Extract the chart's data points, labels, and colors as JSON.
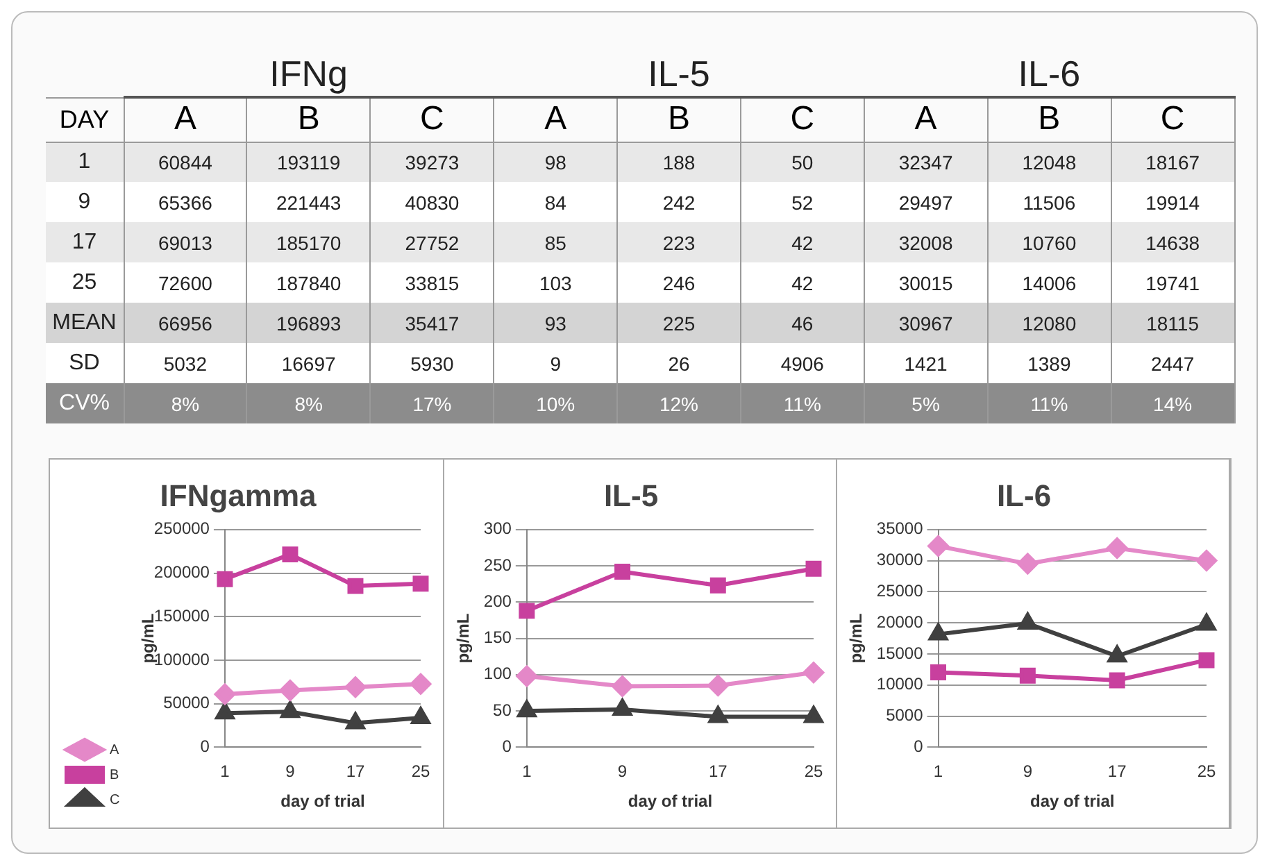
{
  "chart_data": [
    {
      "type": "heatmap",
      "annotations": [
        "DAY",
        "IFNg",
        "IL-5",
        "IL-6"
      ],
      "categories": [
        "A",
        "B",
        "C",
        "A",
        "B",
        "C",
        "A",
        "B",
        "C"
      ],
      "y_categories": [
        "1",
        "9",
        "17",
        "25",
        "MEAN",
        "SD",
        "CV%"
      ],
      "cells": [
        [
          60844,
          193119,
          39273,
          98,
          188,
          50,
          32347,
          12048,
          18167
        ],
        [
          65366,
          221443,
          40830,
          84,
          242,
          52,
          29497,
          11506,
          19914
        ],
        [
          69013,
          185170,
          27752,
          85,
          223,
          42,
          32008,
          10760,
          14638
        ],
        [
          72600,
          187840,
          33815,
          103,
          246,
          42,
          30015,
          14006,
          19741
        ],
        [
          66956,
          196893,
          35417,
          93,
          225,
          46,
          30967,
          12080,
          18115
        ],
        [
          5032,
          16697,
          5930,
          9,
          26,
          4906,
          1421,
          1389,
          2447
        ],
        [
          8,
          8,
          17,
          10,
          12,
          11,
          5,
          11,
          14
        ]
      ],
      "cell_labels": [
        [
          "60844",
          "193119",
          "39273",
          "98",
          "188",
          "50",
          "32347",
          "12048",
          "18167"
        ],
        [
          "65366",
          "221443",
          "40830",
          "84",
          "242",
          "52",
          "29497",
          "11506",
          "19914"
        ],
        [
          "69013",
          "185170",
          "27752",
          "85",
          "223",
          "42",
          "32008",
          "10760",
          "14638"
        ],
        [
          "72600",
          "187840",
          "33815",
          "103",
          "246",
          "42",
          "30015",
          "14006",
          "19741"
        ],
        [
          "66956",
          "196893",
          "35417",
          "93",
          "225",
          "46",
          "30967",
          "12080",
          "18115"
        ],
        [
          "5032",
          "16697",
          "5930",
          "9",
          "26",
          "4906",
          "1421",
          "1389",
          "2447"
        ],
        [
          "8%",
          "8%",
          "17%",
          "10%",
          "12%",
          "11%",
          "5%",
          "11%",
          "14%"
        ]
      ]
    },
    {
      "type": "line",
      "title": "IFNgamma",
      "xlabel": "day of trial",
      "ylabel": "pg/mL",
      "categories": [
        "1",
        "9",
        "17",
        "25"
      ],
      "ylim": [
        0,
        250000
      ],
      "yticks": [
        0,
        50000,
        100000,
        150000,
        200000,
        250000
      ],
      "grid": "y",
      "legend": "bottom left",
      "series": [
        {
          "name": "A",
          "color": "#e488c8",
          "marker": "diamond",
          "values": [
            60844,
            65366,
            69013,
            72600
          ]
        },
        {
          "name": "B",
          "color": "#c8409e",
          "marker": "square",
          "values": [
            193119,
            221443,
            185170,
            187840
          ]
        },
        {
          "name": "C",
          "color": "#404040",
          "marker": "triangle",
          "values": [
            39273,
            40830,
            27752,
            33815
          ]
        }
      ]
    },
    {
      "type": "line",
      "title": "IL-5",
      "xlabel": "day of trial",
      "ylabel": "pg/mL",
      "categories": [
        "1",
        "9",
        "17",
        "25"
      ],
      "ylim": [
        0,
        300
      ],
      "yticks": [
        0,
        50,
        100,
        150,
        200,
        250,
        300
      ],
      "grid": "y",
      "series": [
        {
          "color": "#e488c8",
          "marker": "diamond",
          "values": [
            98,
            84,
            85,
            103
          ]
        },
        {
          "color": "#c8409e",
          "marker": "square",
          "values": [
            188,
            242,
            223,
            246
          ]
        },
        {
          "color": "#404040",
          "marker": "triangle",
          "values": [
            50,
            52,
            42,
            42
          ]
        }
      ]
    },
    {
      "type": "line",
      "title": "IL-6",
      "xlabel": "day of trial",
      "ylabel": "pg/mL",
      "categories": [
        "1",
        "9",
        "17",
        "25"
      ],
      "ylim": [
        0,
        35000
      ],
      "yticks": [
        0,
        5000,
        10000,
        15000,
        20000,
        25000,
        30000,
        35000
      ],
      "grid": "y",
      "series": [
        {
          "color": "#e488c8",
          "marker": "diamond",
          "values": [
            32347,
            29497,
            32008,
            30015
          ]
        },
        {
          "color": "#c8409e",
          "marker": "square",
          "values": [
            12048,
            11506,
            10760,
            14006
          ]
        },
        {
          "color": "#404040",
          "marker": "triangle",
          "values": [
            18167,
            19914,
            14638,
            19741
          ]
        }
      ]
    }
  ]
}
